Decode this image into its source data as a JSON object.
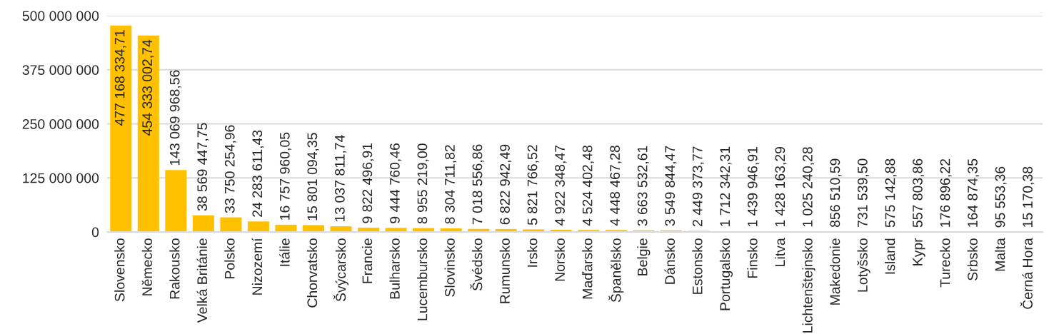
{
  "chart_data": {
    "type": "bar",
    "categories": [
      "Slovensko",
      "Německo",
      "Rakousko",
      "Velká Británie",
      "Polsko",
      "Nizozemí",
      "Itálie",
      "Chorvatsko",
      "Švýcarsko",
      "Francie",
      "Bulharsko",
      "Lucembursko",
      "Slovinsko",
      "Švédsko",
      "Rumunsko",
      "Irsko",
      "Norsko",
      "Maďarsko",
      "Španělsko",
      "Belgie",
      "Dánsko",
      "Estonsko",
      "Portugalsko",
      "Finsko",
      "Litva",
      "Lichtenštejnsko",
      "Makedonie",
      "Lotyšsko",
      "Island",
      "Kypr",
      "Turecko",
      "Srbsko",
      "Malta",
      "Černá Hora"
    ],
    "values": [
      477168334.71,
      454333002.74,
      143069968.56,
      38569447.75,
      33750254.96,
      24283611.43,
      16757960.05,
      15801094.35,
      13037811.74,
      9822496.91,
      9444760.46,
      8955219.0,
      8304711.82,
      7018556.86,
      6822942.49,
      5821766.52,
      4922348.47,
      4524402.48,
      4448467.28,
      3663532.61,
      3549844.47,
      2449373.77,
      1712342.31,
      1439946.91,
      1428163.29,
      1025240.28,
      856510.59,
      731539.5,
      575142.88,
      557803.86,
      176896.22,
      164874.35,
      95553.36,
      15170.38
    ],
    "value_labels": [
      "477 168 334,71",
      "454 333 002,74",
      "143 069 968,56",
      "38 569 447,75",
      "33 750 254,96",
      "24 283 611,43",
      "16 757 960,05",
      "15 801 094,35",
      "13 037 811,74",
      "9 822 496,91",
      "9 444 760,46",
      "8 955 219,00",
      "8 304 711,82",
      "7 018 556,86",
      "6 822 942,49",
      "5 821 766,52",
      "4 922 348,47",
      "4 524 402,48",
      "4 448 467,28",
      "3 663 532,61",
      "3 549 844,47",
      "2 449 373,77",
      "1 712 342,31",
      "1 439 946,91",
      "1 428 163,29",
      "1 025 240,28",
      "856 510,59",
      "731 539,50",
      "575 142,88",
      "557 803,86",
      "176 896,22",
      "164 874,35",
      "95 553,36",
      "15 170,38"
    ],
    "color": "#ffc000",
    "ylim": [
      0,
      500000000
    ],
    "yticks": [
      0,
      {
        "value": 125000000,
        "label": "125 000 000"
      },
      {
        "value": 250000000,
        "label": "250 000 000"
      },
      {
        "value": 375000000,
        "label": "375 000 000"
      },
      {
        "value": 500000000,
        "label": "500 000 000"
      }
    ],
    "grid": "y"
  }
}
